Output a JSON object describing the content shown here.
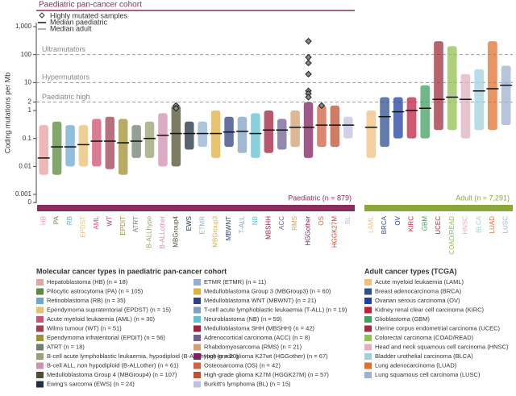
{
  "chart_data": {
    "type": "strip",
    "title": "Paediatric pan-cancer cohort",
    "y_label": "Coding mutations per Mb",
    "log_y": true,
    "ylim": [
      0.001,
      1000
    ],
    "yticks": [
      {
        "value": 1000,
        "label": "1,000"
      },
      100,
      10,
      2,
      1,
      0.1,
      0.01,
      0.001
    ],
    "zero_tick": 0,
    "thresholds": [
      {
        "value": 100,
        "label": "Ultramutators"
      },
      {
        "value": 10,
        "label": "Hypermutators"
      },
      {
        "value": 2,
        "label": "Paediatric high"
      }
    ],
    "legend": [
      "Highly mutated samples",
      "Median paediatric",
      "Median adult"
    ],
    "groups": [
      {
        "name": "Paediatric (n = 879)",
        "color": "#8b2c5e",
        "legend_title": "Molecular cancer types in paediatric pan-cancer cohort",
        "categories": [
          "HB",
          "PA",
          "RB",
          "EPDST",
          "AML",
          "WT",
          "EPDIT",
          "ATRT",
          "B-ALLhypo",
          "B-ALLother",
          "MBGroup4",
          "EWS",
          "ETMR",
          "MBGroup3",
          "MBWNT",
          "T-ALL",
          "NB",
          "MBSHH",
          "ACC",
          "RMS",
          "HGGother",
          "OS",
          "HGGK27M",
          "BL"
        ],
        "labels": [
          "Hepatoblastoma (HB) (n = 18)",
          "Pilocytic astrocytoma (PA) (n = 105)",
          "Retinoblastoma (RB) (n = 35)",
          "Ependymoma supratentorial (EPDST) (n = 15)",
          "Acute myeloid leukaemia (AML) (n = 30)",
          "Wilms tumour (WT) (n = 51)",
          "Ependymoma infratentorial (EPDIT) (n = 56)",
          "ATRT (n = 18)",
          "B-cell acute lymphoblastic leukaemia, hypodiploid (B-ALLhypo) (n = 20)",
          "B-cell ALL, non hypodiploid (B-ALLother) (n = 61)",
          "Medulloblastoma Group 4 (MBGroup4) (n = 107)",
          "Ewing's sarcoma (EWS) (n = 24)",
          "ETMR (ETMR) (n = 11)",
          "Medulloblastoma Group 3 (MBGroup3) (n = 60)",
          "Medulloblastoma WNT (MBWNT) (n = 21)",
          "T-cell acute lymphoblastic leukaemia (T-ALL) (n = 19)",
          "Neuroblastoma (NB) (n = 59)",
          "Medulloblastoma SHH (MBSHH) (n = 42)",
          "Adrenocortical carcinoma (ACC) (n = 8)",
          "Rhabdomyosarcoma (RMS) (n = 21)",
          "High-grade glioma K27wt (HGGother) (n = 67)",
          "Osteosarcoma (OS) (n = 42)",
          "High-grade glioma K27M (HGGK27M) (n = 57)",
          "Burkitt's lymphoma (BL) (n = 15)"
        ],
        "colors": [
          "#e8a0a0",
          "#5a8a3a",
          "#6aaad0",
          "#e8c070",
          "#d05070",
          "#a04050",
          "#a09030",
          "#708070",
          "#9aa070",
          "#d090b0",
          "#505030",
          "#203040",
          "#90b0d0",
          "#e0b040",
          "#304080",
          "#80a0c0",
          "#60c0d0",
          "#a02040",
          "#706090",
          "#d0a070",
          "#802060",
          "#d06040",
          "#c05030",
          "#c0c0e0"
        ],
        "medians": [
          0.02,
          0.05,
          0.05,
          0.06,
          0.08,
          0.08,
          0.07,
          0.08,
          0.1,
          0.13,
          0.15,
          0.15,
          0.15,
          0.15,
          0.17,
          0.18,
          0.15,
          0.2,
          0.2,
          0.25,
          0.25,
          0.3,
          0.3,
          0.3
        ],
        "lows": [
          0.005,
          0.005,
          0.01,
          0.01,
          0.01,
          0.008,
          0.005,
          0.02,
          0.02,
          0.01,
          0.01,
          0.04,
          0.05,
          0.02,
          0.05,
          0.03,
          0.02,
          0.03,
          0.04,
          0.05,
          0.02,
          0.05,
          0.05,
          0.1
        ],
        "highs": [
          0.3,
          0.4,
          0.3,
          0.3,
          0.5,
          0.6,
          0.5,
          0.3,
          0.4,
          0.8,
          1.5,
          0.4,
          0.4,
          1,
          0.6,
          0.6,
          0.8,
          1,
          0.5,
          1,
          2,
          1.5,
          1.5,
          0.6
        ],
        "outlier_index": [
          10,
          10,
          20,
          20,
          20,
          20,
          20,
          20,
          20,
          21
        ],
        "outlier_values": [
          1.5,
          1.2,
          300,
          80,
          50,
          20,
          5,
          4,
          3,
          1.5
        ]
      },
      {
        "name": "Adult (n = 7,291)",
        "color": "#8aa838",
        "legend_title": "Adult cancer types (TCGA)",
        "categories": [
          "LAML",
          "BRCA",
          "OV",
          "KIRC",
          "GBM",
          "UCEC",
          "COAD/READ",
          "HNSC",
          "BLCA",
          "LUAD",
          "LUSC"
        ],
        "labels": [
          "Acute myeloid leukaemia (LAML)",
          "Breast adenocarcinoma (BRCA)",
          "Ovarian serous carcinoma (OV)",
          "Kidney renal clear cell carcinoma (KIRC)",
          "Glioblastoma (GBM)",
          "Uterine corpus endometrial carcinoma (UCEC)",
          "Colorectal carcinoma (COAD/READ)",
          "Head and neck squamous cell carcinoma (HNSC)",
          "Bladder urothelial carcinoma (BLCA)",
          "Lung adenocarcinoma (LUAD)",
          "Lung squamous cell carcinoma (LUSC)"
        ],
        "colors": [
          "#f0c080",
          "#305090",
          "#2040a0",
          "#c02040",
          "#40a060",
          "#a03040",
          "#90c050",
          "#e0b0c0",
          "#a0d0e0",
          "#e07030",
          "#a0b0d0"
        ],
        "medians": [
          0.25,
          0.6,
          0.9,
          1,
          1.2,
          2.5,
          3,
          2.5,
          5,
          6,
          8
        ],
        "lows": [
          0.02,
          0.05,
          0.1,
          0.1,
          0.1,
          0.2,
          0.2,
          0.1,
          0.2,
          0.2,
          0.3
        ],
        "highs": [
          1,
          3,
          3,
          3,
          8,
          300,
          200,
          20,
          30,
          300,
          40
        ],
        "outlier_index": [],
        "outlier_values": []
      }
    ]
  }
}
